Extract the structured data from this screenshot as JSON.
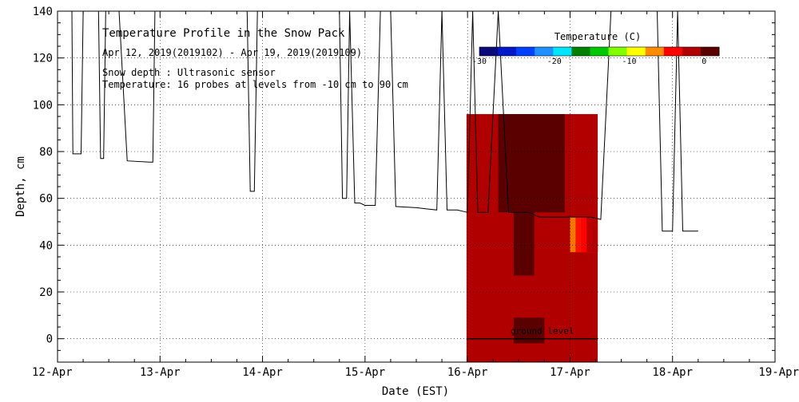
{
  "chart_data": {
    "type": "heatmap",
    "title": "Temperature Profile in the Snow Pack",
    "date_range": "Apr 12, 2019(2019102) - Apr 19, 2019(2019109)",
    "notes": [
      "Snow depth : Ultrasonic sensor",
      "Temperature: 16 probes at levels from -10 cm to 90 cm"
    ],
    "xlabel": "Date (EST)",
    "ylabel": "Depth, cm",
    "x_ticks": [
      "12-Apr",
      "13-Apr",
      "14-Apr",
      "15-Apr",
      "16-Apr",
      "17-Apr",
      "18-Apr",
      "19-Apr"
    ],
    "xlim": [
      0,
      7
    ],
    "ylim": [
      -10,
      140
    ],
    "y_ticks": [
      0,
      20,
      40,
      60,
      80,
      100,
      120,
      140
    ],
    "grid": true,
    "colorbar": {
      "label": "Temperature (C)",
      "range": [
        -30,
        2
      ],
      "tick_values": [
        -30,
        -20,
        -10,
        0
      ],
      "tick_labels": [
        "-30",
        "-20",
        "-10",
        "0"
      ],
      "colors": [
        "#0a0a78",
        "#0018c8",
        "#0040ff",
        "#1e90ff",
        "#00e5ff",
        "#008000",
        "#00c800",
        "#7fff00",
        "#ffff00",
        "#ff8c00",
        "#ff0000",
        "#b00000",
        "#5a0000"
      ]
    },
    "ground_level_label": "ground level",
    "ground_level_depth": 0,
    "snow_depth_series": {
      "name": "Snow depth",
      "points": [
        [
          0.0,
          140
        ],
        [
          0.14,
          140
        ],
        [
          0.15,
          79
        ],
        [
          0.23,
          79
        ],
        [
          0.25,
          140
        ],
        [
          0.28,
          140
        ],
        [
          0.3,
          140
        ],
        [
          0.35,
          140
        ],
        [
          0.38,
          140
        ],
        [
          0.4,
          140
        ],
        [
          0.42,
          77
        ],
        [
          0.45,
          77
        ],
        [
          0.47,
          140
        ],
        [
          0.5,
          140
        ],
        [
          0.55,
          140
        ],
        [
          0.6,
          140
        ],
        [
          0.68,
          76
        ],
        [
          0.9,
          75.5
        ],
        [
          0.93,
          75.5
        ],
        [
          0.95,
          140
        ],
        [
          1.0,
          140
        ],
        [
          1.5,
          140
        ],
        [
          1.85,
          140
        ],
        [
          1.88,
          63
        ],
        [
          1.92,
          63
        ],
        [
          1.95,
          140
        ],
        [
          2.0,
          140
        ],
        [
          2.3,
          140
        ],
        [
          2.5,
          140
        ],
        [
          2.75,
          140
        ],
        [
          2.78,
          60
        ],
        [
          2.82,
          60
        ],
        [
          2.85,
          140
        ],
        [
          2.9,
          58
        ],
        [
          2.95,
          58
        ],
        [
          3.0,
          57
        ],
        [
          3.1,
          57
        ],
        [
          3.15,
          140
        ],
        [
          3.25,
          140
        ],
        [
          3.3,
          56.5
        ],
        [
          3.5,
          56
        ],
        [
          3.6,
          55.5
        ],
        [
          3.7,
          55
        ],
        [
          3.75,
          140
        ],
        [
          3.8,
          55
        ],
        [
          3.9,
          55
        ],
        [
          4.0,
          54
        ],
        [
          4.05,
          140
        ],
        [
          4.1,
          54
        ],
        [
          4.2,
          54
        ],
        [
          4.3,
          140
        ],
        [
          4.4,
          54
        ],
        [
          4.6,
          54
        ],
        [
          4.7,
          52
        ],
        [
          4.9,
          52
        ],
        [
          5.0,
          52
        ],
        [
          5.2,
          52
        ],
        [
          5.3,
          51
        ],
        [
          5.4,
          140
        ],
        [
          5.5,
          140
        ],
        [
          5.8,
          140
        ],
        [
          5.85,
          140
        ],
        [
          5.9,
          46
        ],
        [
          6.0,
          46
        ],
        [
          6.05,
          140
        ],
        [
          6.1,
          46
        ],
        [
          6.2,
          46
        ],
        [
          6.25,
          46
        ]
      ]
    },
    "temperature_field": {
      "x_start": 3.99,
      "x_end": 5.27,
      "depth_bottom": -10,
      "depth_top": 96,
      "base_temp": -0.5,
      "cold_core": {
        "x_from": 4.45,
        "x_to": 4.65,
        "depth_from": 27,
        "depth_to": 96,
        "temp": 0.8
      },
      "upper_dark": {
        "x_from": 4.3,
        "x_to": 4.95,
        "depth_from": 54,
        "depth_to": 96,
        "temp": 1.0
      },
      "ground_dark": {
        "x_from": 4.45,
        "x_to": 4.75,
        "depth_from": -2,
        "depth_to": 9,
        "temp": 0.9
      },
      "warm_edge": {
        "x_from": 5.0,
        "x_to": 5.27,
        "depth_from": 37,
        "depth_to": 52,
        "temp_min": -6,
        "temp_max": -1.5
      }
    }
  }
}
